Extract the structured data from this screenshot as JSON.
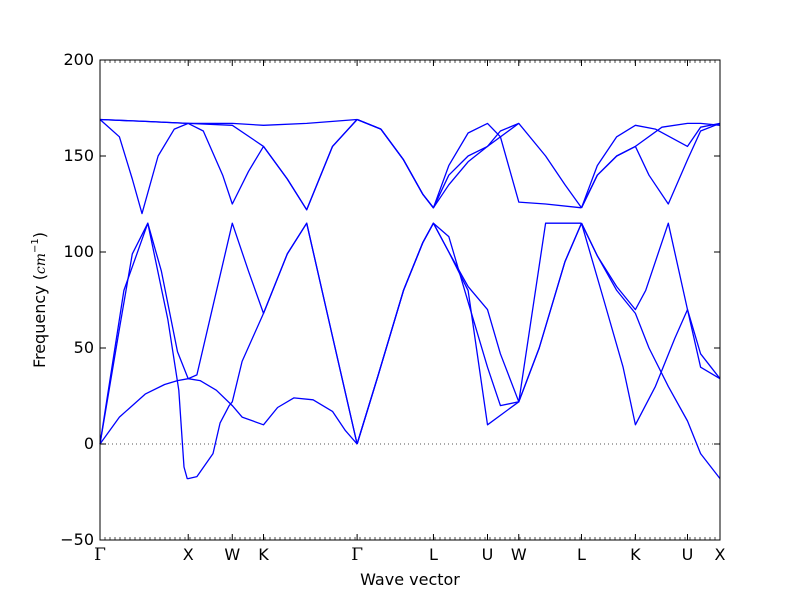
{
  "chart_data": {
    "type": "line",
    "title": "",
    "xlabel": "Wave vector",
    "ylabel": "Frequency (cm⁻¹)",
    "ylabel_prefix": "Frequency (",
    "ylabel_unit": "cm",
    "ylabel_exp": "−1",
    "ylabel_suffix": ")",
    "ylim": [
      -50,
      200
    ],
    "yticks": [
      -50,
      0,
      50,
      100,
      150,
      200
    ],
    "ytick_labels": [
      "−50",
      "0",
      "50",
      "100",
      "150",
      "200"
    ],
    "xlim": [
      0,
      9.6
    ],
    "high_symmetry_points": [
      {
        "label": "Γ",
        "x": 0
      },
      {
        "label": "X",
        "x": 1.366
      },
      {
        "label": "W",
        "x": 2.048
      },
      {
        "label": "K",
        "x": 2.532
      },
      {
        "label": "Γ",
        "x": 3.981
      },
      {
        "label": "L",
        "x": 5.163
      },
      {
        "label": "U",
        "x": 6.0
      },
      {
        "label": "W",
        "x": 6.484
      },
      {
        "label": "L",
        "x": 7.455
      },
      {
        "label": "K",
        "x": 8.29
      },
      {
        "label": "U",
        "x": 9.097
      },
      {
        "label": "X",
        "x": 9.6
      }
    ],
    "zero_line": 0,
    "grid": false,
    "line_color": "#0000ff",
    "series": [
      {
        "x": [
          0,
          0.37,
          0.74,
          1.05,
          1.22,
          1.3,
          1.35,
          1.366,
          1.5,
          1.75,
          1.86,
          2.0,
          2.048,
          2.2,
          2.532,
          2.9,
          3.2,
          3.6,
          3.981
        ],
        "y": [
          0,
          80,
          115,
          65,
          28,
          -12,
          -18,
          -18,
          -17,
          -5,
          11,
          20,
          22,
          43,
          68,
          99,
          115,
          56,
          0
        ]
      },
      {
        "x": [
          0,
          0.3,
          0.7,
          1.0,
          1.2,
          1.366,
          1.55,
          1.8,
          2.048,
          2.2,
          2.532,
          2.75,
          3.0,
          3.3,
          3.6,
          3.8,
          3.981
        ],
        "y": [
          0,
          14,
          26,
          31,
          33,
          34,
          33,
          28,
          20,
          14,
          10,
          19,
          24,
          23,
          17,
          7,
          0
        ]
      },
      {
        "x": [
          0,
          0.3,
          0.5,
          0.74,
          0.95,
          1.2,
          1.366,
          1.5,
          1.75,
          2.048,
          2.3,
          2.532,
          2.9,
          3.2,
          3.6,
          3.981
        ],
        "y": [
          0,
          60,
          99,
          115,
          90,
          48,
          34,
          36,
          72,
          115,
          90,
          68,
          99,
          115,
          56,
          0
        ]
      },
      {
        "x": [
          0,
          0.3,
          0.5,
          0.65,
          0.9,
          1.15,
          1.366,
          1.6,
          1.9,
          2.048,
          2.3,
          2.532,
          2.9,
          3.2,
          3.6,
          3.981
        ],
        "y": [
          169,
          160,
          138,
          120,
          150,
          164,
          167,
          163,
          140,
          125,
          142,
          155,
          138,
          122,
          155,
          169
        ]
      },
      {
        "x": [
          0,
          0.7,
          1.366,
          2.048,
          2.532,
          3.2,
          3.981
        ],
        "y": [
          169,
          168,
          167,
          167,
          166,
          167,
          169
        ]
      },
      {
        "x": [
          0,
          0.7,
          1.366,
          2.048,
          2.532,
          2.9,
          3.2,
          3.6,
          3.981
        ],
        "y": [
          169,
          168,
          167,
          166,
          155,
          138,
          122,
          155,
          169
        ]
      },
      {
        "x": [
          3.981,
          4.35,
          4.7,
          5.0,
          5.163,
          5.4,
          5.7,
          6.0,
          6.2,
          6.484,
          6.9,
          7.2,
          7.455
        ],
        "y": [
          169,
          164,
          148,
          130,
          123,
          135,
          147,
          155,
          163,
          167,
          150,
          135,
          123
        ]
      },
      {
        "x": [
          3.981,
          4.35,
          4.7,
          5.0,
          5.163,
          5.4,
          5.7,
          6.0,
          6.2,
          6.484,
          6.9,
          7.455
        ],
        "y": [
          169,
          164,
          148,
          130,
          123,
          145,
          162,
          167,
          160,
          126,
          125,
          123
        ]
      },
      {
        "x": [
          3.981,
          4.35,
          4.7,
          5.0,
          5.163,
          5.4,
          5.7,
          6.0,
          6.484
        ],
        "y": [
          169,
          164,
          148,
          130,
          123,
          140,
          150,
          155,
          167
        ]
      },
      {
        "x": [
          3.981,
          4.3,
          4.7,
          5.0,
          5.163,
          5.4,
          5.7,
          6.0,
          6.2,
          6.484,
          6.8,
          7.2,
          7.455
        ],
        "y": [
          0,
          35,
          80,
          105,
          115,
          100,
          82,
          70,
          47,
          22,
          50,
          95,
          115
        ]
      },
      {
        "x": [
          3.981,
          4.3,
          4.7,
          5.0,
          5.163,
          5.4,
          5.7,
          6.0,
          6.484,
          6.9,
          7.455
        ],
        "y": [
          0,
          35,
          80,
          105,
          115,
          100,
          80,
          10,
          22,
          115,
          115
        ]
      },
      {
        "x": [
          3.981,
          4.3,
          4.7,
          5.0,
          5.163,
          5.4,
          5.7,
          6.0,
          6.2,
          6.484,
          6.8,
          7.2,
          7.455
        ],
        "y": [
          0,
          35,
          80,
          105,
          115,
          108,
          74,
          40,
          20,
          22,
          50,
          95,
          115
        ]
      },
      {
        "x": [
          7.455,
          7.7,
          8.0,
          8.29,
          8.6,
          9.097,
          9.3,
          9.6
        ],
        "y": [
          123,
          145,
          160,
          166,
          164,
          155,
          165,
          167
        ]
      },
      {
        "x": [
          7.455,
          7.7,
          8.0,
          8.29,
          8.5,
          8.8,
          9.097,
          9.3,
          9.6
        ],
        "y": [
          123,
          140,
          150,
          155,
          140,
          125,
          148,
          163,
          167
        ]
      },
      {
        "x": [
          7.455,
          7.7,
          8.0,
          8.29,
          8.7,
          9.097,
          9.3,
          9.6
        ],
        "y": [
          123,
          140,
          150,
          155,
          165,
          167,
          167,
          166
        ]
      },
      {
        "x": [
          7.455,
          7.7,
          8.0,
          8.29,
          8.5,
          8.8,
          9.097,
          9.3,
          9.6
        ],
        "y": [
          115,
          98,
          80,
          68,
          50,
          30,
          12,
          -5,
          -18
        ]
      },
      {
        "x": [
          7.455,
          7.7,
          8.0,
          8.29,
          8.45,
          8.8,
          9.097,
          9.3,
          9.6
        ],
        "y": [
          115,
          98,
          82,
          70,
          80,
          115,
          70,
          40,
          34
        ]
      },
      {
        "x": [
          7.455,
          7.8,
          8.1,
          8.29,
          8.6,
          8.9,
          9.097,
          9.3,
          9.6
        ],
        "y": [
          115,
          75,
          40,
          10,
          30,
          55,
          70,
          47,
          34
        ]
      }
    ]
  }
}
